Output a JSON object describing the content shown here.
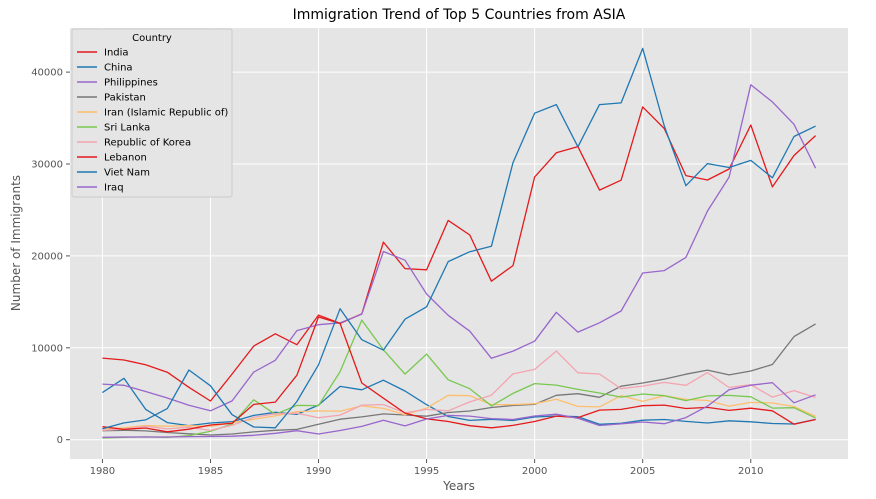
{
  "chart_data": {
    "type": "line",
    "title": "Immigration Trend of Top 5 Countries from ASIA",
    "xlabel": "Years",
    "ylabel": "Number of Immigrants",
    "xlim": [
      1978.5,
      2014.5
    ],
    "ylim": [
      -2100,
      44800
    ],
    "xticks": [
      1980,
      1985,
      1990,
      1995,
      2000,
      2005,
      2010
    ],
    "yticks": [
      0,
      10000,
      20000,
      30000,
      40000
    ],
    "grid": true,
    "legend_title": "Country",
    "legend_position": "top-left",
    "x": [
      1980,
      1981,
      1982,
      1983,
      1984,
      1985,
      1986,
      1987,
      1988,
      1989,
      1990,
      1991,
      1992,
      1993,
      1994,
      1995,
      1996,
      1997,
      1998,
      1999,
      2000,
      2001,
      2002,
      2003,
      2004,
      2005,
      2006,
      2007,
      2008,
      2009,
      2010,
      2011,
      2012,
      2013
    ],
    "series": [
      {
        "name": "India",
        "color": "#e41a1c",
        "values": [
          8880,
          8670,
          8150,
          7340,
          5700,
          4210,
          7150,
          10190,
          11520,
          10340,
          13560,
          12660,
          13690,
          21500,
          18620,
          18490,
          23860,
          22280,
          17250,
          18940,
          28570,
          31220,
          31890,
          27160,
          28240,
          36210,
          33850,
          28740,
          28260,
          29460,
          34240,
          27510,
          30930,
          33090
        ]
      },
      {
        "name": "China",
        "color": "#1f78b4",
        "values": [
          5120,
          6680,
          3310,
          1860,
          1530,
          1820,
          1960,
          2640,
          2980,
          2750,
          3760,
          5800,
          5430,
          6480,
          5300,
          3810,
          2530,
          2100,
          2220,
          2090,
          2470,
          2580,
          2500,
          1680,
          1780,
          2120,
          2200,
          1990,
          1820,
          2060,
          1950,
          1760,
          1710,
          2210
        ]
      },
      {
        "name": "Philippines",
        "color": "#9966cc",
        "values": [
          6050,
          5920,
          5250,
          4540,
          3750,
          3150,
          4220,
          7360,
          8640,
          11870,
          12510,
          12720,
          13670,
          20480,
          19530,
          15860,
          13540,
          11810,
          8860,
          9640,
          10720,
          13860,
          11710,
          12720,
          14000,
          18140,
          18400,
          19840,
          24890,
          28580,
          38620,
          36760,
          34320,
          29540
        ]
      },
      {
        "name": "Pakistan",
        "color": "#777777",
        "values": [
          980,
          1020,
          960,
          780,
          640,
          510,
          620,
          850,
          1020,
          1120,
          1690,
          2230,
          2480,
          2810,
          2690,
          2560,
          2960,
          3120,
          3500,
          3720,
          3840,
          4830,
          5010,
          4610,
          5820,
          6170,
          6590,
          7130,
          7570,
          7050,
          7480,
          8180,
          11220,
          12600
        ]
      },
      {
        "name": "Iran (Islamic Republic of)",
        "color": "#fdbf6f",
        "values": [
          1170,
          1280,
          1550,
          1470,
          1520,
          1450,
          1870,
          2220,
          2590,
          3060,
          3130,
          3100,
          3690,
          3410,
          2710,
          3440,
          4830,
          4790,
          3820,
          3820,
          3920,
          4410,
          3620,
          3570,
          4800,
          4170,
          4790,
          4390,
          4270,
          3650,
          4060,
          3990,
          3610,
          2540
        ]
      },
      {
        "name": "Sri Lanka",
        "color": "#78c850",
        "values": [
          190,
          260,
          310,
          250,
          450,
          930,
          1700,
          4340,
          2760,
          3730,
          3710,
          7410,
          13020,
          9780,
          7140,
          9310,
          6520,
          5550,
          3680,
          5040,
          6100,
          5940,
          5470,
          5080,
          4640,
          4970,
          4790,
          4250,
          4770,
          4820,
          4670,
          3440,
          3480,
          2350
        ]
      },
      {
        "name": "Republic of Korea",
        "color": "#f4a4b0",
        "values": [
          1010,
          1160,
          1480,
          1180,
          1360,
          1010,
          1570,
          2440,
          2820,
          2870,
          2390,
          2680,
          3770,
          3820,
          2930,
          3300,
          3150,
          4110,
          4840,
          7160,
          7650,
          9640,
          7280,
          7150,
          5550,
          5830,
          6230,
          5920,
          7300,
          5680,
          5990,
          4640,
          5340,
          4590
        ]
      },
      {
        "name": "Lebanon",
        "color": "#e41a1c",
        "values": [
          1410,
          1120,
          1270,
          860,
          1140,
          1600,
          1790,
          3840,
          4090,
          7020,
          13350,
          12640,
          6170,
          4520,
          2890,
          2270,
          1980,
          1520,
          1290,
          1560,
          1980,
          2570,
          2400,
          3220,
          3300,
          3700,
          3770,
          3390,
          3520,
          3190,
          3430,
          3140,
          1690,
          2200
        ]
      },
      {
        "name": "Viet Nam",
        "color": "#1f78b4",
        "values": [
          1190,
          1830,
          2160,
          3380,
          7580,
          5870,
          2720,
          1380,
          1300,
          4160,
          8150,
          14260,
          10880,
          9750,
          13110,
          14460,
          19380,
          20460,
          21040,
          30150,
          35530,
          36470,
          31870,
          36460,
          36650,
          42580,
          34140,
          27640,
          30040,
          29620,
          30390,
          28500,
          32990,
          34130
        ]
      },
      {
        "name": "Iraq",
        "color": "#9966cc",
        "values": [
          260,
          290,
          290,
          290,
          340,
          350,
          380,
          480,
          700,
          980,
          620,
          1000,
          1450,
          2110,
          1500,
          2250,
          2640,
          2570,
          2300,
          2200,
          2580,
          2770,
          2330,
          1540,
          1730,
          1930,
          1740,
          2400,
          3660,
          5440,
          5930,
          6200,
          4020,
          4890
        ]
      }
    ]
  }
}
